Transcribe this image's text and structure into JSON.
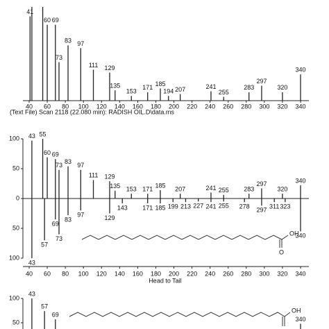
{
  "chart_data": [
    {
      "type": "stick",
      "subtitle": "(Text File) Scan 2118 (22.080 min): RADISH OIL.D\\data.ms",
      "x": [
        41,
        43,
        55,
        60,
        69,
        73,
        83,
        97,
        111,
        129,
        135,
        153,
        171,
        185,
        194,
        207,
        241,
        255,
        283,
        297,
        320,
        340
      ],
      "values": [
        90,
        100,
        100,
        81,
        81,
        41,
        59,
        56,
        33,
        30,
        11,
        5,
        9,
        13,
        5,
        7,
        10,
        4,
        9,
        16,
        9,
        28
      ],
      "color": "#222222",
      "xlim": [
        40,
        340
      ],
      "xticks": [
        40,
        60,
        80,
        100,
        120,
        140,
        160,
        180,
        200,
        220,
        240,
        260,
        280,
        300,
        320,
        340
      ],
      "ylim": [
        0,
        100
      ]
    },
    {
      "type": "stick",
      "xlabel": "Head to Tail",
      "annotations": [
        "OH",
        "O"
      ],
      "series": [
        {
          "color": "#222222",
          "x": [
            43,
            55,
            60,
            69,
            73,
            83,
            97,
            111,
            129,
            135,
            153,
            171,
            185,
            207,
            241,
            255,
            283,
            297,
            320,
            340
          ],
          "values": [
            97,
            100,
            69,
            66,
            48,
            54,
            48,
            31,
            29,
            13,
            8,
            8,
            14,
            8,
            10,
            6,
            8,
            17,
            8,
            22
          ]
        },
        {
          "color": "#222222",
          "x": [
            43,
            57,
            69,
            73,
            83,
            97,
            129,
            143,
            171,
            185,
            199,
            213,
            227,
            241,
            255,
            278,
            297,
            311,
            323,
            340
          ],
          "values": [
            -100,
            -70,
            -35,
            -60,
            -28,
            -20,
            -25,
            -8,
            -8,
            -8,
            -6,
            -6,
            -5,
            -6,
            -5,
            -6,
            -12,
            -6,
            -6,
            -55
          ]
        }
      ],
      "xlim": [
        40,
        340
      ],
      "xticks": [
        40,
        60,
        80,
        100,
        120,
        140,
        160,
        180,
        200,
        220,
        240,
        260,
        280,
        300,
        320,
        340
      ],
      "ylim": [
        -100,
        100
      ],
      "yticks": [
        {
          "value": -100,
          "label": "100"
        },
        {
          "value": -50,
          "label": "50"
        },
        0,
        50,
        100
      ]
    },
    {
      "type": "stick",
      "annotations": [
        "OH"
      ],
      "x": [
        43,
        57,
        69,
        340
      ],
      "values": [
        100,
        74,
        57,
        48
      ],
      "color": "#222222",
      "xlim": [
        40,
        340
      ],
      "ylim": [
        0,
        100
      ],
      "yticks": [
        50,
        100
      ]
    }
  ]
}
